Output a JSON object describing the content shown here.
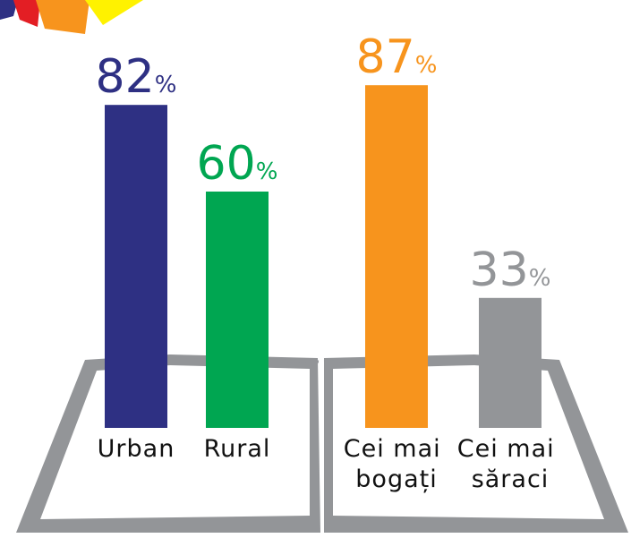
{
  "chart_data": {
    "type": "bar",
    "categories": [
      "Urban",
      "Rural",
      "Cei mai bogați",
      "Cei mai săraci"
    ],
    "values": [
      82,
      60,
      87,
      33
    ],
    "value_labels": [
      "82%",
      "60%",
      "87%",
      "33%"
    ],
    "colors": [
      "#2e3083",
      "#00a651",
      "#f7941d",
      "#939598"
    ]
  }
}
